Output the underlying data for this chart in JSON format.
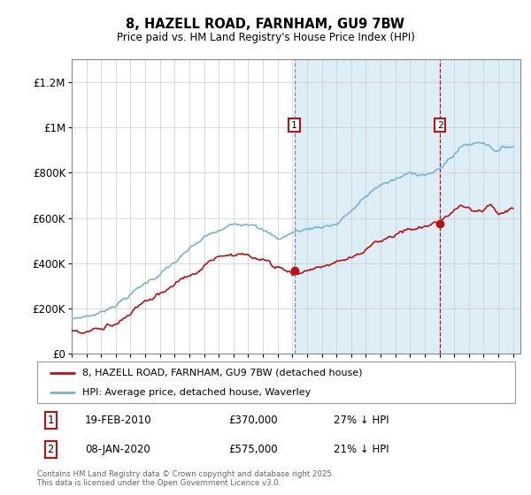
{
  "title1": "8, HAZELL ROAD, FARNHAM, GU9 7BW",
  "title2": "Price paid vs. HM Land Registry's House Price Index (HPI)",
  "ylabel_ticks": [
    "£0",
    "£200K",
    "£400K",
    "£600K",
    "£800K",
    "£1M",
    "£1.2M"
  ],
  "ytick_vals": [
    0,
    200000,
    400000,
    600000,
    800000,
    1000000,
    1200000
  ],
  "ylim": [
    0,
    1300000
  ],
  "hpi_color": "#7ab3d4",
  "hpi_fill_color": "#ddeef7",
  "price_color": "#bb1111",
  "vline1_color": "#aaaacc",
  "vline2_color": "#cc2222",
  "marker1_date": 2010.13,
  "marker1_price": 370000,
  "marker2_date": 2020.03,
  "marker2_price": 575000,
  "legend_line1": "8, HAZELL ROAD, FARNHAM, GU9 7BW (detached house)",
  "legend_line2": "HPI: Average price, detached house, Waverley",
  "table_row1": [
    "1",
    "19-FEB-2010",
    "£370,000",
    "27% ↓ HPI"
  ],
  "table_row2": [
    "2",
    "08-JAN-2020",
    "£575,000",
    "21% ↓ HPI"
  ],
  "footnote": "Contains HM Land Registry data © Crown copyright and database right 2025.\nThis data is licensed under the Open Government Licence v3.0."
}
